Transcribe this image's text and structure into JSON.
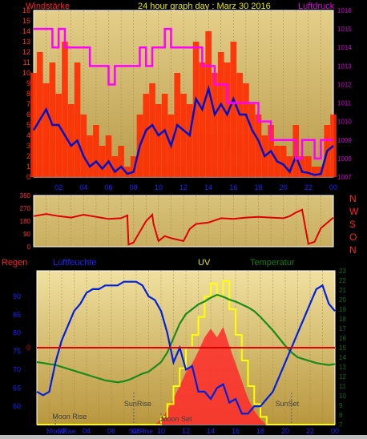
{
  "header": {
    "title": "24 hour graph day : Marz 30 2016",
    "left_label": "Windstärke",
    "right_label": "Luftdruck"
  },
  "side_labels": {
    "compass": [
      "N",
      "W",
      "S",
      "O",
      "N"
    ],
    "regen": "Regen",
    "luftfeuchte": "Luftfeuchte",
    "uv": "UV",
    "temperatur": "Temperatur"
  },
  "colors": {
    "wind_bar": "#ff2a00",
    "wind_avg": "#0010c8",
    "pressure": "#ff00ff",
    "humidity": "#0020e0",
    "temperature": "#1a8a1a",
    "uv_line": "#ffff00",
    "uv_fill": "#ff2a2a",
    "rain_line": "#e00000",
    "direction": "#e00000",
    "axis_left": "#ff3030",
    "axis_right": "#d000d0",
    "axis_humidity": "#2020ff",
    "axis_temp": "#107010",
    "panel_bg": "#d3be76"
  },
  "chart_data": [
    {
      "type": "bar",
      "name": "wind",
      "title": "24 hour graph day : Marz 30 2016",
      "ylabel": "Windstärke",
      "y2label": "Luftdruck",
      "x_ticks": [
        "02",
        "04",
        "06",
        "08",
        "10",
        "12",
        "14",
        "16",
        "18",
        "20",
        "22",
        "00"
      ],
      "ylim": [
        0,
        16
      ],
      "y_ticks": [
        0,
        1,
        2,
        3,
        4,
        5,
        6,
        7,
        8,
        9,
        10,
        11,
        12,
        13,
        14,
        15,
        16
      ],
      "y2lim": [
        1007,
        1016
      ],
      "y2_ticks": [
        1007,
        1008,
        1009,
        1010,
        1011,
        1012,
        1013,
        1014,
        1015,
        1016
      ],
      "gust_x": [
        0,
        0.5,
        1,
        1.5,
        2,
        2.5,
        3,
        3.5,
        4,
        4.5,
        5,
        5.5,
        6,
        6.5,
        7,
        7.5,
        8,
        8.5,
        9,
        9.5,
        10,
        10.5,
        11,
        11.5,
        12,
        12.5,
        13,
        13.5,
        14,
        14.5,
        15,
        15.5,
        16,
        16.5,
        17,
        17.5,
        18,
        18.5,
        19,
        19.5,
        20,
        20.5,
        21,
        21.5,
        22,
        22.5,
        23,
        23.5,
        24
      ],
      "gust": [
        10,
        12,
        9,
        11,
        8,
        13,
        7,
        11,
        6,
        4,
        5,
        3,
        4,
        2,
        3,
        1,
        2,
        6,
        8,
        9,
        7,
        8,
        6,
        10,
        8,
        7,
        13,
        11,
        14,
        10,
        12,
        11,
        13,
        10,
        9,
        7,
        6,
        4,
        5,
        3,
        3,
        2,
        5,
        2,
        2,
        1,
        1,
        5,
        6
      ],
      "avg_x": [
        0,
        0.5,
        1,
        1.5,
        2,
        2.5,
        3,
        3.5,
        4,
        4.5,
        5,
        5.5,
        6,
        6.5,
        7,
        7.5,
        8,
        8.5,
        9,
        9.5,
        10,
        10.5,
        11,
        11.5,
        12,
        12.5,
        13,
        13.5,
        14,
        14.5,
        15,
        15.5,
        16,
        16.5,
        17,
        17.5,
        18,
        18.5,
        19,
        19.5,
        20,
        20.5,
        21,
        21.5,
        22,
        22.5,
        23,
        23.5,
        24
      ],
      "avg": [
        4.5,
        5.5,
        6.5,
        5,
        5,
        4,
        3,
        3.5,
        2,
        1,
        1.5,
        0.8,
        1.5,
        0.5,
        1,
        0.3,
        0.5,
        3,
        4.5,
        5,
        4,
        4.5,
        3,
        5,
        4.5,
        4,
        7.5,
        6.5,
        8.5,
        6,
        7,
        6,
        7.5,
        6,
        6,
        4.5,
        3.5,
        2,
        2.5,
        1.5,
        1.2,
        0.5,
        2,
        0.5,
        0.4,
        0.2,
        0.3,
        2.5,
        3
      ],
      "pressure_x": [
        0,
        0.5,
        1,
        1.5,
        2,
        2.5,
        3,
        3.5,
        4,
        4.5,
        5,
        5.5,
        6,
        6.5,
        7,
        7.5,
        8,
        8.5,
        9,
        9.5,
        10,
        10.5,
        11,
        11.5,
        12,
        12.5,
        13,
        13.5,
        14,
        14.5,
        15,
        15.5,
        16,
        16.5,
        17,
        17.5,
        18,
        18.5,
        19,
        19.5,
        20,
        20.5,
        21,
        21.5,
        22,
        22.5,
        23,
        23.5,
        24
      ],
      "pressure": [
        1015,
        1015,
        1015,
        1014,
        1015,
        1014,
        1014,
        1014,
        1014,
        1013,
        1013,
        1013,
        1012,
        1013,
        1013,
        1013,
        1013,
        1014,
        1013,
        1014,
        1014,
        1015,
        1014,
        1014,
        1014,
        1014,
        1014,
        1013,
        1013,
        1012,
        1012,
        1011,
        1011,
        1011,
        1011,
        1011,
        1010,
        1010,
        1009,
        1009,
        1009,
        1009,
        1008,
        1009,
        1009,
        1008,
        1009,
        1009,
        1009
      ]
    },
    {
      "type": "line",
      "name": "wind_direction",
      "x_ticks": [
        "02",
        "04",
        "06",
        "08",
        "10",
        "12",
        "14",
        "16",
        "18",
        "20",
        "22",
        "00"
      ],
      "ylim": [
        0,
        360
      ],
      "y_ticks": [
        0,
        90,
        180,
        270,
        360
      ],
      "y2_labels": [
        "N",
        "W",
        "S",
        "O",
        "N"
      ],
      "x": [
        0,
        1,
        2,
        3,
        4,
        5,
        6,
        7,
        7.5,
        7.6,
        8,
        9,
        9.5,
        9.6,
        10,
        10.5,
        11,
        12,
        12.5,
        13,
        14,
        15,
        16,
        17,
        18,
        19,
        20,
        20.5,
        21,
        21.5,
        22,
        22.5,
        23,
        24
      ],
      "values": [
        215,
        230,
        215,
        205,
        225,
        210,
        195,
        200,
        220,
        15,
        30,
        180,
        225,
        160,
        40,
        75,
        60,
        40,
        125,
        160,
        170,
        200,
        195,
        205,
        210,
        205,
        200,
        215,
        240,
        260,
        20,
        35,
        130,
        205
      ]
    },
    {
      "type": "line",
      "name": "bottom",
      "x_ticks": [
        "02",
        "04",
        "06",
        "08",
        "10",
        "12",
        "14",
        "16",
        "18",
        "20",
        "22",
        "00"
      ],
      "moon": [
        "Moon Rise",
        "Moon Set"
      ],
      "sun": [
        "SunRise",
        "SunSet"
      ],
      "rain_ylim": [
        -1,
        1
      ],
      "rain_label_zero": "0",
      "humidity_ylim": [
        55,
        97
      ],
      "humidity_ticks": [
        60,
        65,
        70,
        75,
        80,
        85,
        90
      ],
      "temp_ylim": [
        7,
        23
      ],
      "temp_ticks": [
        7,
        8,
        9,
        10,
        11,
        12,
        13,
        14,
        15,
        16,
        17,
        18,
        19,
        20,
        21,
        22,
        23
      ],
      "x": [
        0,
        0.5,
        1,
        1.5,
        2,
        2.5,
        3,
        3.5,
        4,
        4.5,
        5,
        5.5,
        6,
        6.5,
        7,
        7.5,
        8,
        8.5,
        9,
        9.5,
        10,
        10.5,
        11,
        11.5,
        12,
        12.5,
        13,
        13.5,
        14,
        14.5,
        15,
        15.5,
        16,
        16.5,
        17,
        17.5,
        18,
        18.5,
        19,
        19.5,
        20,
        20.5,
        21,
        21.5,
        22,
        22.5,
        23,
        23.5,
        24
      ],
      "humidity": [
        64,
        63,
        64,
        72,
        78,
        82,
        86,
        88,
        91,
        92,
        92,
        93,
        93,
        93,
        94,
        94,
        94,
        93,
        90,
        89,
        86,
        80,
        72,
        76,
        70,
        71,
        64,
        64,
        62,
        65,
        66,
        61,
        62,
        58,
        58,
        60,
        60,
        62,
        64,
        68,
        72,
        76,
        80,
        84,
        88,
        92,
        93,
        88,
        86
      ],
      "temperature": [
        13.5,
        13.4,
        13.3,
        13.2,
        13,
        12.8,
        12.6,
        12.4,
        12.2,
        12,
        11.8,
        11.6,
        11.5,
        11.4,
        11.5,
        11.7,
        12,
        12.3,
        12.5,
        13,
        13.5,
        14.5,
        16,
        17.5,
        18.5,
        19,
        19.5,
        19.8,
        20.2,
        20.5,
        20.3,
        20,
        19.8,
        19.5,
        19.2,
        18.8,
        18.2,
        17.5,
        16.8,
        16,
        15.2,
        14.5,
        14,
        13.8,
        13.6,
        13.4,
        13.3,
        13.2,
        13.3
      ],
      "uv": [
        0,
        0,
        0,
        0,
        0,
        0,
        0,
        0,
        0,
        0,
        0,
        0,
        0,
        0,
        0,
        0,
        0,
        0,
        0,
        0,
        0.3,
        0.8,
        1.5,
        2.2,
        3,
        3.5,
        4.2,
        5,
        5.5,
        5,
        5.6,
        4.5,
        3.5,
        2.5,
        1.5,
        0.8,
        0.3,
        0,
        0,
        0,
        0,
        0,
        0,
        0,
        0,
        0,
        0,
        0,
        0
      ],
      "solar": [
        0,
        0,
        0,
        0,
        0,
        0,
        0,
        0,
        0,
        0,
        0,
        0,
        0,
        0,
        0,
        0,
        0,
        0,
        0,
        0,
        0,
        0.2,
        0.6,
        0.9,
        1.3,
        1.7,
        2.2,
        2.6,
        2.9,
        3.2,
        3,
        2.6,
        2.2,
        1.8,
        1.3,
        0.7,
        0.3,
        0,
        0,
        0,
        0,
        0,
        0,
        0,
        0,
        0,
        0,
        0,
        0
      ],
      "rain": [
        0,
        0,
        0,
        0,
        0,
        0,
        0,
        0,
        0,
        0,
        0,
        0,
        0,
        0,
        0,
        0,
        0,
        0,
        0,
        0,
        0,
        0,
        0,
        0,
        0,
        0,
        0,
        0,
        0,
        0,
        0,
        0,
        0,
        0,
        0,
        0,
        0,
        0,
        0,
        0,
        0,
        0,
        0,
        0,
        0,
        0,
        0,
        0,
        0
      ]
    }
  ]
}
